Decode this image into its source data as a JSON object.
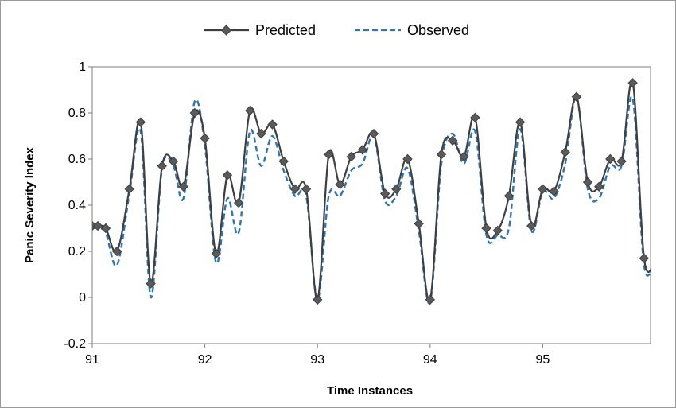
{
  "chart_data": {
    "type": "line",
    "title": "",
    "xlabel": "Time Instances",
    "ylabel": "Panic Severity Index",
    "xlim": [
      91,
      96
    ],
    "ylim": [
      -0.2,
      1
    ],
    "x_ticks": [
      "91",
      "92",
      "93",
      "94",
      "95"
    ],
    "y_ticks": [
      "-0.2",
      "0",
      "0.2",
      "0.4",
      "0.6",
      "0.8",
      "1"
    ],
    "grid": false,
    "legend_position": "top",
    "x": [
      91.0,
      91.05,
      91.12,
      91.22,
      91.33,
      91.43,
      91.52,
      91.62,
      91.72,
      91.81,
      91.91,
      92.0,
      92.1,
      92.2,
      92.3,
      92.4,
      92.5,
      92.6,
      92.7,
      92.8,
      92.9,
      93.0,
      93.1,
      93.2,
      93.3,
      93.4,
      93.5,
      93.6,
      93.7,
      93.8,
      93.9,
      94.0,
      94.1,
      94.2,
      94.3,
      94.4,
      94.5,
      94.6,
      94.7,
      94.8,
      94.9,
      95.0,
      95.1,
      95.2,
      95.3,
      95.4,
      95.5,
      95.6,
      95.7,
      95.8,
      95.9,
      96.0
    ],
    "series": [
      {
        "name": "Predicted",
        "color": "#3f3f3f",
        "style": "solid-diamond",
        "values": [
          0.31,
          0.31,
          0.3,
          0.2,
          0.47,
          0.76,
          0.06,
          0.57,
          0.59,
          0.48,
          0.8,
          0.69,
          0.19,
          0.53,
          0.41,
          0.81,
          0.71,
          0.75,
          0.59,
          0.47,
          0.47,
          -0.01,
          0.62,
          0.49,
          0.61,
          0.64,
          0.71,
          0.45,
          0.47,
          0.6,
          0.32,
          -0.01,
          0.62,
          0.68,
          0.61,
          0.78,
          0.3,
          0.29,
          0.44,
          0.76,
          0.31,
          0.47,
          0.46,
          0.63,
          0.87,
          0.5,
          0.48,
          0.6,
          0.59,
          0.93,
          0.17,
          0.16
        ]
      },
      {
        "name": "Observed",
        "color": "#2e75b6",
        "style": "dashed",
        "values": [
          0.3,
          0.3,
          0.28,
          0.14,
          0.45,
          0.72,
          0.0,
          0.56,
          0.57,
          0.43,
          0.85,
          0.66,
          0.15,
          0.43,
          0.28,
          0.72,
          0.57,
          0.7,
          0.55,
          0.44,
          0.44,
          -0.01,
          0.44,
          0.44,
          0.55,
          0.58,
          0.7,
          0.42,
          0.44,
          0.56,
          0.29,
          -0.02,
          0.58,
          0.71,
          0.58,
          0.72,
          0.27,
          0.27,
          0.3,
          0.73,
          0.29,
          0.46,
          0.43,
          0.58,
          0.87,
          0.47,
          0.43,
          0.57,
          0.57,
          0.86,
          0.14,
          0.17
        ]
      }
    ]
  }
}
